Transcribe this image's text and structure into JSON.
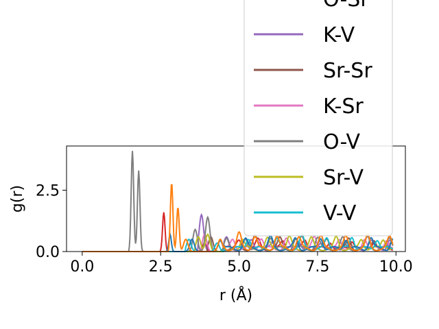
{
  "chart_data": {
    "type": "line",
    "title": "",
    "xlabel": "r (Å)",
    "ylabel": "g(r)",
    "xlim": [
      -0.5,
      10.3
    ],
    "ylim": [
      0,
      4.3
    ],
    "xticks": [
      0.0,
      2.5,
      5.0,
      7.5,
      10.0
    ],
    "xtick_labels": [
      "0.0",
      "2.5",
      "5.0",
      "7.5",
      "10.0"
    ],
    "yticks": [
      0.0,
      2.5
    ],
    "ytick_labels": [
      "0.0",
      "2.5"
    ],
    "grid": false,
    "legend_position": "upper-right",
    "series": [
      {
        "name": "O-Sr",
        "color": "#d62728",
        "peaks": [
          [
            2.6,
            1.6
          ],
          [
            3.9,
            0.35
          ],
          [
            5.0,
            0.3
          ],
          [
            5.6,
            0.35
          ],
          [
            6.4,
            0.3
          ],
          [
            7.1,
            0.35
          ],
          [
            7.9,
            0.3
          ],
          [
            8.6,
            0.35
          ],
          [
            9.3,
            0.3
          ]
        ]
      },
      {
        "name": "K-V",
        "color": "#9467bd",
        "peaks": [
          [
            3.8,
            1.5
          ],
          [
            4.6,
            0.4
          ],
          [
            5.4,
            0.35
          ],
          [
            6.1,
            0.3
          ],
          [
            6.9,
            0.35
          ],
          [
            7.6,
            0.3
          ],
          [
            8.4,
            0.35
          ],
          [
            9.2,
            0.3
          ],
          [
            9.8,
            0.35
          ]
        ]
      },
      {
        "name": "Sr-Sr",
        "color": "#8c564b",
        "peaks": [
          [
            4.1,
            0.6
          ],
          [
            5.5,
            0.5
          ],
          [
            6.3,
            0.4
          ],
          [
            7.0,
            0.45
          ],
          [
            7.8,
            0.4
          ],
          [
            8.5,
            0.45
          ],
          [
            9.3,
            0.4
          ],
          [
            9.9,
            0.4
          ]
        ]
      },
      {
        "name": "K-Sr",
        "color": "#e377c2",
        "peaks": [
          [
            3.9,
            0.7
          ],
          [
            4.8,
            0.4
          ],
          [
            5.7,
            0.45
          ],
          [
            6.5,
            0.4
          ],
          [
            7.4,
            0.45
          ],
          [
            8.2,
            0.4
          ],
          [
            9.0,
            0.45
          ],
          [
            9.7,
            0.4
          ]
        ]
      },
      {
        "name": "O-V",
        "color": "#7f7f7f",
        "peaks": [
          [
            1.6,
            4.1
          ],
          [
            1.8,
            3.3
          ],
          [
            3.6,
            0.9
          ],
          [
            4.0,
            1.4
          ],
          [
            4.6,
            0.5
          ],
          [
            5.2,
            0.45
          ],
          [
            6.0,
            0.5
          ],
          [
            6.8,
            0.4
          ],
          [
            7.5,
            0.45
          ],
          [
            8.3,
            0.4
          ],
          [
            9.1,
            0.45
          ],
          [
            9.8,
            0.4
          ]
        ]
      },
      {
        "name": "Sr-V",
        "color": "#bcbd22",
        "peaks": [
          [
            3.7,
            0.6
          ],
          [
            4.0,
            0.7
          ],
          [
            5.1,
            0.4
          ],
          [
            5.9,
            0.4
          ],
          [
            6.6,
            0.45
          ],
          [
            7.3,
            0.4
          ],
          [
            8.1,
            0.45
          ],
          [
            8.9,
            0.4
          ],
          [
            9.6,
            0.4
          ]
        ]
      },
      {
        "name": "V-V",
        "color": "#17becf",
        "peaks": [
          [
            3.4,
            0.5
          ],
          [
            4.3,
            0.35
          ],
          [
            5.3,
            0.45
          ],
          [
            6.2,
            0.4
          ],
          [
            7.0,
            0.5
          ],
          [
            7.8,
            0.4
          ],
          [
            8.6,
            0.5
          ],
          [
            9.4,
            0.4
          ]
        ]
      },
      {
        "name": "",
        "color": "#1f77b4",
        "peaks": [
          [
            2.8,
            0.7
          ],
          [
            3.5,
            0.5
          ],
          [
            4.4,
            0.45
          ],
          [
            5.2,
            0.4
          ],
          [
            6.0,
            0.45
          ],
          [
            6.8,
            0.4
          ],
          [
            7.6,
            0.45
          ],
          [
            8.4,
            0.4
          ],
          [
            9.2,
            0.45
          ],
          [
            9.9,
            0.4
          ]
        ]
      },
      {
        "name": "",
        "color": "#ff7f0e",
        "peaks": [
          [
            2.85,
            2.8
          ],
          [
            3.05,
            1.8
          ],
          [
            3.3,
            0.5
          ],
          [
            4.4,
            0.5
          ],
          [
            5.0,
            0.6
          ],
          [
            5.5,
            0.5
          ],
          [
            6.2,
            0.5
          ],
          [
            6.9,
            0.45
          ],
          [
            7.6,
            0.5
          ],
          [
            8.4,
            0.45
          ],
          [
            9.1,
            0.5
          ],
          [
            9.8,
            0.45
          ]
        ]
      }
    ]
  }
}
